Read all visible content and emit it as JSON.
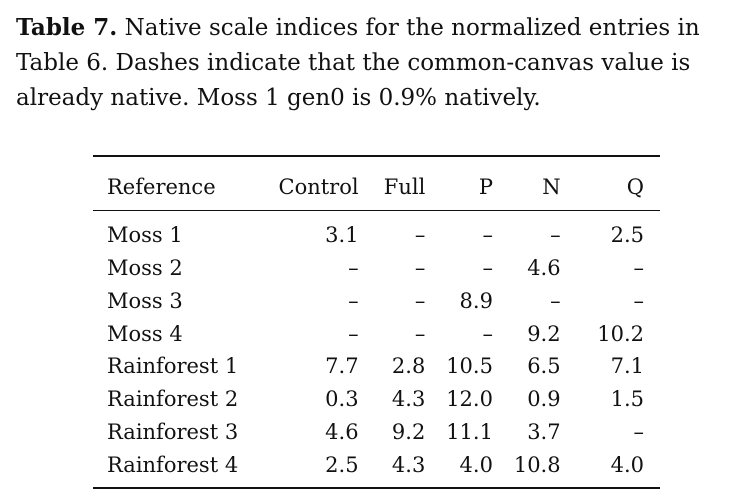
{
  "caption": {
    "label": "Table 7.",
    "text": " Native scale indices for the normalized entries in Table 6. Dashes indicate that the common-canvas value is already native. Moss 1 gen0 is 0.9% natively."
  },
  "table": {
    "headers": [
      "Reference",
      "Control",
      "Full",
      "P",
      "N",
      "Q"
    ],
    "rows": [
      [
        "Moss 1",
        "3.1",
        "–",
        "–",
        "–",
        "2.5"
      ],
      [
        "Moss 2",
        "–",
        "–",
        "–",
        "4.6",
        "–"
      ],
      [
        "Moss 3",
        "–",
        "–",
        "8.9",
        "–",
        "–"
      ],
      [
        "Moss 4",
        "–",
        "–",
        "–",
        "9.2",
        "10.2"
      ],
      [
        "Rainforest 1",
        "7.7",
        "2.8",
        "10.5",
        "6.5",
        "7.1"
      ],
      [
        "Rainforest 2",
        "0.3",
        "4.3",
        "12.0",
        "0.9",
        "1.5"
      ],
      [
        "Rainforest 3",
        "4.6",
        "9.2",
        "11.1",
        "3.7",
        "–"
      ],
      [
        "Rainforest 4",
        "2.5",
        "4.3",
        "4.0",
        "10.8",
        "4.0"
      ]
    ]
  }
}
